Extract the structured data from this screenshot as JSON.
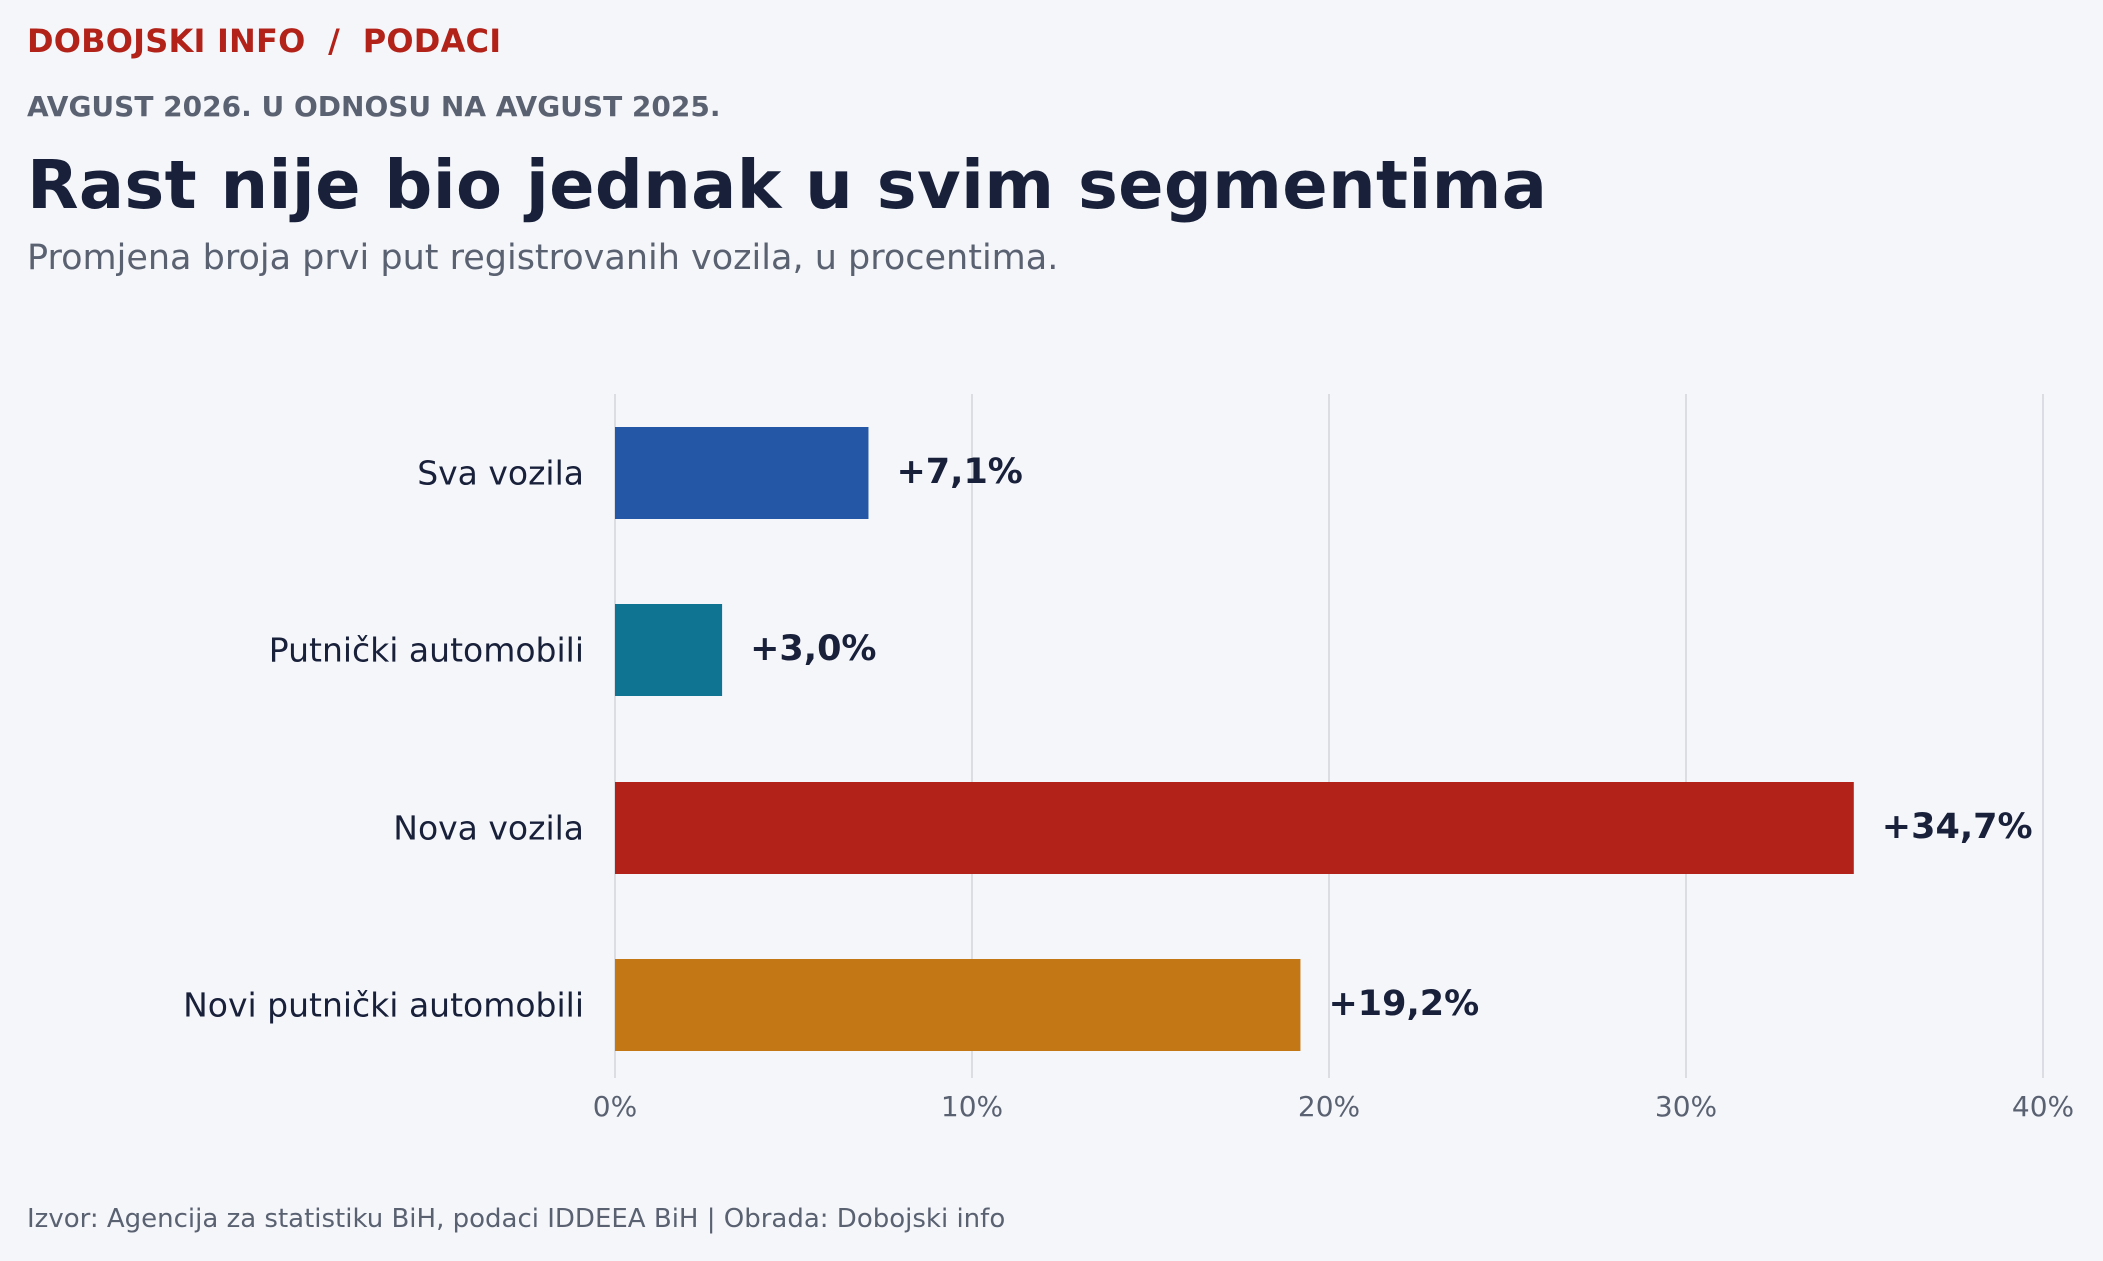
{
  "header": {
    "kicker": "DOBOJSKI INFO  /  PODACI",
    "eyebrow": "AVGUST 2026. U ODNOSU NA AVGUST 2025.",
    "title": "Rast nije bio jednak u svim segmentima",
    "subtitle": "Promjena broja prvi put registrovanih vozila, u procentima."
  },
  "footer": {
    "source": "Izvor: Agencija za statistiku BiH, podaci IDDEEA BiH  |  Obrada: Dobojski info"
  },
  "chart_data": {
    "type": "bar",
    "orientation": "horizontal",
    "categories": [
      "Sva vozila",
      "Putnički automobili",
      "Nova vozila",
      "Novi putnički automobili"
    ],
    "values": [
      7.1,
      3.0,
      34.7,
      19.2
    ],
    "value_labels": [
      "+7,1%",
      "+3,0%",
      "+34,7%",
      "+19,2%"
    ],
    "colors": [
      "#2457a5",
      "#0f7492",
      "#b22219",
      "#c47815"
    ],
    "xlim": [
      0,
      40
    ],
    "xticks": [
      0,
      10,
      20,
      30,
      40
    ],
    "xtick_labels": [
      "0%",
      "10%",
      "20%",
      "30%",
      "40%"
    ],
    "grid": "vertical",
    "legend": "none"
  }
}
